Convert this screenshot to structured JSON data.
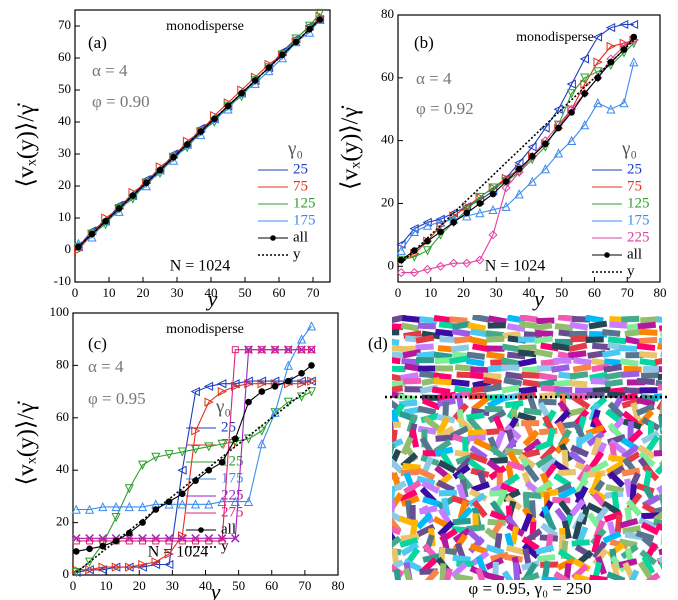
{
  "chart_data": [
    {
      "type": "line",
      "panel_label": "(a)",
      "note": "monodisperse",
      "alpha_text": "α = 4",
      "phi_text": "φ = 0.90",
      "n_text": "N = 1024",
      "x_label": "y",
      "y_label": "⟨vₓ(y)⟩/γ̇",
      "legend_title": "γ₀",
      "xlim": [
        0,
        75
      ],
      "xticks": [
        0,
        10,
        20,
        30,
        40,
        50,
        60,
        70
      ],
      "ylim": [
        -10,
        75
      ],
      "yticks": [
        -10,
        0,
        10,
        20,
        30,
        40,
        50,
        60,
        70
      ],
      "x": [
        1,
        5,
        9,
        13,
        17,
        21,
        25,
        29,
        33,
        37,
        41,
        45,
        49,
        53,
        57,
        61,
        65,
        69,
        72
      ],
      "series": [
        {
          "name": "25",
          "color": "#1c3cc0",
          "marker": "tri-left",
          "values": [
            1,
            6,
            9,
            14,
            17,
            22,
            25,
            30,
            33,
            38,
            41,
            45,
            49,
            53,
            57,
            62,
            66,
            70,
            72
          ]
        },
        {
          "name": "75",
          "color": "#e0301a",
          "marker": "tri-right",
          "values": [
            0,
            5,
            10,
            13,
            18,
            21,
            26,
            29,
            34,
            37,
            42,
            46,
            50,
            54,
            58,
            61,
            65,
            69,
            73
          ]
        },
        {
          "name": "125",
          "color": "#2ca02c",
          "marker": "tri-down",
          "values": [
            1,
            5,
            8,
            13,
            16,
            21,
            24,
            29,
            32,
            37,
            40,
            45,
            48,
            53,
            57,
            61,
            66,
            70,
            74
          ]
        },
        {
          "name": "175",
          "color": "#3b8bef",
          "marker": "tri-up",
          "values": [
            2,
            4,
            9,
            12,
            17,
            20,
            25,
            28,
            33,
            36,
            41,
            44,
            49,
            52,
            56,
            60,
            65,
            68,
            72
          ]
        },
        {
          "name": "all",
          "color": "#000000",
          "marker": "circle",
          "values": [
            1,
            5,
            9,
            13,
            17,
            21,
            25,
            29,
            33,
            37,
            41,
            45,
            49,
            53,
            57,
            61,
            65,
            69,
            72
          ]
        },
        {
          "name": "y",
          "color": "#000000",
          "marker": "none",
          "dashed": true,
          "values": [
            1,
            5,
            9,
            13,
            17,
            21,
            25,
            29,
            33,
            37,
            41,
            45,
            49,
            53,
            57,
            61,
            65,
            69,
            72
          ]
        }
      ]
    },
    {
      "type": "line",
      "panel_label": "(b)",
      "note": "monodisperse",
      "alpha_text": "α = 4",
      "phi_text": "φ = 0.92",
      "n_text": "N = 1024",
      "x_label": "y",
      "y_label": "⟨vₓ(y)⟩/γ̇",
      "legend_title": "γ₀",
      "xlim": [
        0,
        80
      ],
      "xticks": [
        0,
        10,
        20,
        30,
        40,
        50,
        60,
        70,
        80
      ],
      "ylim": [
        -5,
        80
      ],
      "yticks": [
        0,
        20,
        40,
        60,
        80
      ],
      "x": [
        1,
        5,
        9,
        13,
        17,
        21,
        25,
        29,
        33,
        37,
        41,
        45,
        49,
        53,
        57,
        61,
        65,
        69,
        72
      ],
      "series": [
        {
          "name": "25",
          "color": "#1c3cc0",
          "marker": "tri-left",
          "values": [
            7,
            12,
            14,
            15,
            17,
            19,
            21,
            24,
            28,
            33,
            38,
            44,
            50,
            58,
            66,
            73,
            76,
            77,
            77
          ]
        },
        {
          "name": "75",
          "color": "#e0301a",
          "marker": "tri-right",
          "values": [
            2,
            4,
            8,
            13,
            16,
            19,
            22,
            25,
            28,
            31,
            35,
            39,
            44,
            50,
            58,
            65,
            70,
            71,
            72
          ]
        },
        {
          "name": "125",
          "color": "#2ca02c",
          "marker": "tri-down",
          "values": [
            2,
            3,
            5,
            10,
            14,
            18,
            22,
            25,
            27,
            30,
            34,
            38,
            45,
            55,
            60,
            62,
            64,
            68,
            71
          ]
        },
        {
          "name": "175",
          "color": "#3b8bef",
          "marker": "tri-up",
          "values": [
            5,
            11,
            13,
            14,
            15,
            16,
            17,
            18,
            19,
            23,
            27,
            31,
            36,
            40,
            45,
            52,
            50,
            52,
            65
          ]
        },
        {
          "name": "225",
          "color": "#e040a0",
          "marker": "diamond",
          "values": [
            -2,
            -2,
            -1,
            0,
            1,
            1,
            2,
            10,
            25,
            30,
            35,
            40,
            45,
            50,
            55,
            60,
            66,
            70,
            72
          ]
        },
        {
          "name": "all",
          "color": "#000000",
          "marker": "circle",
          "values": [
            2,
            5,
            8,
            11,
            14,
            17,
            20,
            23,
            27,
            31,
            35,
            39,
            44,
            49,
            55,
            60,
            65,
            69,
            73
          ]
        },
        {
          "name": "y",
          "color": "#000000",
          "marker": "none",
          "dashed": true,
          "values": [
            1,
            5,
            9,
            13,
            17,
            21,
            25,
            29,
            33,
            37,
            41,
            45,
            49,
            53,
            57,
            61,
            65,
            69,
            72
          ]
        }
      ]
    },
    {
      "type": "line",
      "panel_label": "(c)",
      "note": "monodisperse",
      "alpha_text": "α = 4",
      "phi_text": "φ = 0.95",
      "n_text": "N = 1024",
      "x_label": "y",
      "y_label": "⟨vₓ(y)⟩/γ̇",
      "legend_title": "γ₀",
      "xlim": [
        0,
        80
      ],
      "xticks": [
        0,
        10,
        20,
        30,
        40,
        50,
        60,
        70,
        80
      ],
      "ylim": [
        0,
        100
      ],
      "yticks": [
        0,
        20,
        40,
        60,
        80,
        100
      ],
      "x": [
        1,
        5,
        9,
        13,
        17,
        21,
        25,
        29,
        33,
        37,
        41,
        45,
        49,
        53,
        57,
        61,
        65,
        69,
        72
      ],
      "series": [
        {
          "name": "25",
          "color": "#1c3cc0",
          "marker": "tri-left",
          "values": [
            1,
            2,
            2,
            3,
            3,
            3,
            4,
            4,
            40,
            70,
            72,
            73,
            73,
            74,
            74,
            74,
            74,
            74,
            74
          ]
        },
        {
          "name": "75",
          "color": "#e0301a",
          "marker": "tri-right",
          "values": [
            2,
            2,
            3,
            3,
            3,
            4,
            5,
            8,
            15,
            55,
            66,
            70,
            72,
            73,
            73,
            73,
            73,
            73,
            74
          ]
        },
        {
          "name": "125",
          "color": "#2ca02c",
          "marker": "tri-down",
          "values": [
            1,
            5,
            12,
            22,
            33,
            42,
            45,
            46,
            47,
            48,
            49,
            50,
            51,
            52,
            55,
            62,
            66,
            68,
            70
          ]
        },
        {
          "name": "175",
          "color": "#3b8bef",
          "marker": "tri-up",
          "values": [
            25,
            25,
            26,
            26,
            26,
            26,
            27,
            27,
            27,
            27,
            27,
            28,
            28,
            28,
            50,
            62,
            80,
            90,
            95
          ]
        },
        {
          "name": "225",
          "color": "#a020c0",
          "marker": "x",
          "values": [
            14,
            14,
            14,
            14,
            14,
            14,
            14,
            14,
            14,
            14,
            14,
            14,
            14,
            86,
            86,
            86,
            86,
            86,
            86
          ]
        },
        {
          "name": "275",
          "color": "#e0207a",
          "marker": "square",
          "values": [
            13,
            13,
            13,
            13,
            13,
            13,
            13,
            13,
            13,
            13,
            13,
            13,
            86,
            86,
            86,
            86,
            86,
            86,
            86
          ]
        },
        {
          "name": "all",
          "color": "#000000",
          "marker": "circle",
          "values": [
            9,
            10,
            11,
            13,
            16,
            20,
            25,
            28,
            31,
            36,
            40,
            43,
            52,
            66,
            70,
            72,
            74,
            77,
            80
          ]
        },
        {
          "name": "y",
          "color": "#000000",
          "marker": "none",
          "dashed": true,
          "values": [
            1,
            5,
            9,
            13,
            17,
            21,
            25,
            29,
            33,
            37,
            41,
            45,
            49,
            53,
            57,
            61,
            65,
            69,
            72
          ]
        }
      ]
    }
  ],
  "panel_d": {
    "label": "(d)",
    "caption": "φ = 0.95, γ₀ = 250"
  }
}
